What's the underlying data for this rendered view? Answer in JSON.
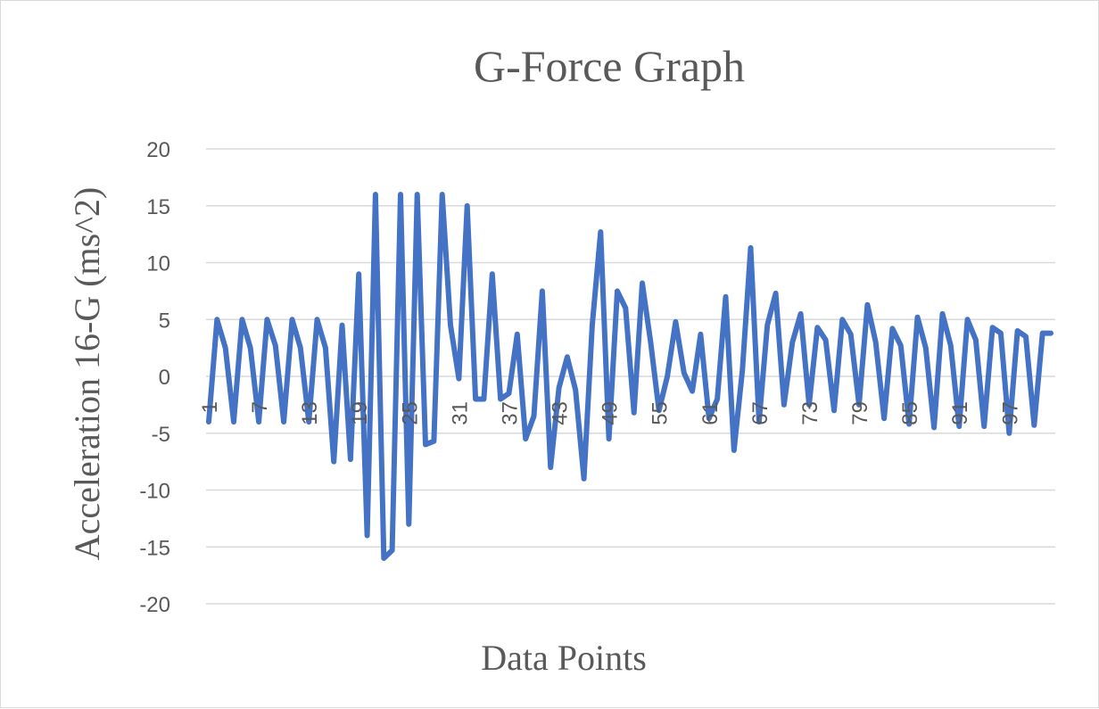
{
  "chart_data": {
    "type": "line",
    "title": "G-Force Graph",
    "xlabel": "Data Points",
    "ylabel": "Acceleration 16-G (ms^2)",
    "ylim": [
      -20,
      20
    ],
    "yticks": [
      20,
      15,
      10,
      5,
      0,
      -5,
      -10,
      -15,
      -20
    ],
    "xtick_labels": [
      "1",
      "7",
      "13",
      "19",
      "25",
      "31",
      "37",
      "43",
      "49",
      "55",
      "61",
      "67",
      "73",
      "79",
      "85",
      "91",
      "97"
    ],
    "grid": true,
    "series": [
      {
        "color": "#4472c4",
        "x": [
          1,
          2,
          3,
          4,
          5,
          6,
          7,
          8,
          9,
          10,
          11,
          12,
          13,
          14,
          15,
          16,
          17,
          18,
          19,
          20,
          21,
          22,
          23,
          24,
          25,
          26,
          27,
          28,
          29,
          30,
          31,
          32,
          33,
          34,
          35,
          36,
          37,
          38,
          39,
          40,
          41,
          42,
          43,
          44,
          45,
          46,
          47,
          48,
          49,
          50,
          51,
          52,
          53,
          54,
          55,
          56,
          57,
          58,
          59,
          60,
          61,
          62,
          63,
          64,
          65,
          66,
          67,
          68,
          69,
          70,
          71,
          72,
          73,
          74,
          75,
          76,
          77,
          78,
          79,
          80,
          81,
          82,
          83,
          84,
          85,
          86,
          87,
          88,
          89,
          90,
          91,
          92,
          93,
          94,
          95,
          96,
          97,
          98,
          99,
          100,
          101,
          102
        ],
        "values": [
          -4,
          5,
          2.5,
          -4,
          5,
          2.5,
          -4,
          5,
          2.7,
          -4,
          5,
          2.5,
          -4,
          5,
          2.5,
          -7.5,
          4.5,
          -7.3,
          9,
          -14,
          16,
          -16,
          -15.3,
          16,
          -13,
          16,
          -6,
          -5.7,
          16,
          4.5,
          -0.2,
          15,
          -2,
          -2,
          9,
          -2,
          -1.5,
          3.7,
          -5.5,
          -3.5,
          7.5,
          -8,
          -1,
          1.7,
          -1.2,
          -9,
          4.5,
          12.7,
          -5.5,
          7.5,
          6,
          -3.2,
          8.2,
          3,
          -3,
          0,
          4.8,
          0.3,
          -1.3,
          3.7,
          -3.7,
          -2,
          7,
          -6.5,
          0.5,
          11.3,
          -4,
          4.5,
          7.3,
          -2.5,
          3,
          5.5,
          -2.5,
          4.3,
          3.2,
          -3,
          5,
          3.7,
          -2.5,
          6.3,
          3,
          -3.7,
          4.2,
          2.7,
          -4.2,
          5.2,
          2.5,
          -4.5,
          5.5,
          2.7,
          -4.4,
          5,
          3.2,
          -4.4,
          4.3,
          3.8,
          -5,
          4,
          3.5,
          -4.3,
          3.8,
          3.8
        ]
      }
    ]
  }
}
